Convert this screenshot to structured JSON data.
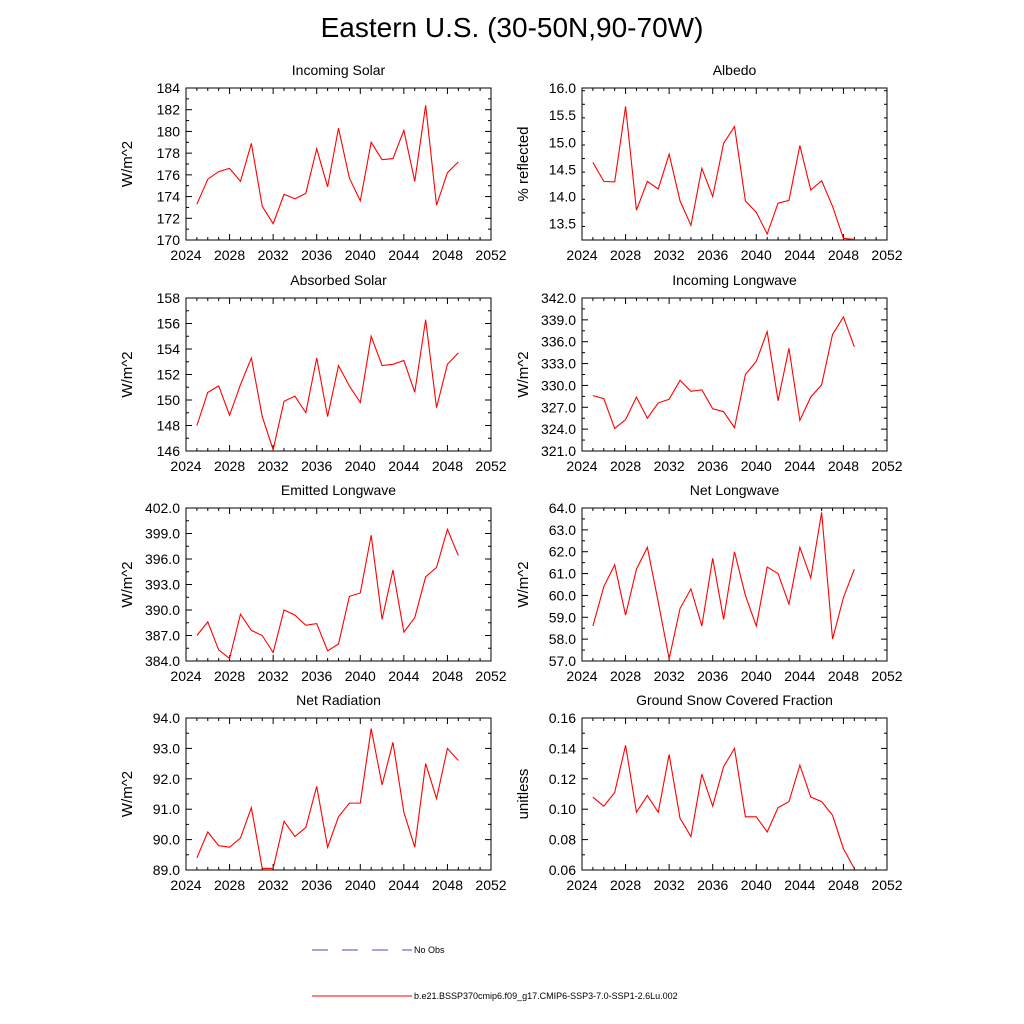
{
  "figure": {
    "title": "Eastern U.S. (30-50N,90-70W)"
  },
  "legend": [
    {
      "label": "No Obs",
      "color": "#4a4ac8",
      "dashed": true
    },
    {
      "label": "b.e21.BSSP370cmip6.f09_g17.CMIP6-SSP3-7.0-SSP1-2.6Lu.002",
      "color": "#ff0000",
      "dashed": false
    }
  ],
  "chart_data": [
    {
      "type": "line",
      "title": "Incoming Solar",
      "xlabel": "",
      "ylabel": "W/m^2",
      "xlim": [
        2024,
        2052
      ],
      "xticks": [
        2024,
        2028,
        2032,
        2036,
        2040,
        2044,
        2048,
        2052
      ],
      "ylim": [
        170,
        184
      ],
      "yticks": [
        170,
        172,
        174,
        176,
        178,
        180,
        182,
        184
      ],
      "ytick_decimals": 0,
      "x": [
        2025,
        2026,
        2027,
        2028,
        2029,
        2030,
        2031,
        2032,
        2033,
        2034,
        2035,
        2036,
        2037,
        2038,
        2039,
        2040,
        2041,
        2042,
        2043,
        2044,
        2045,
        2046,
        2047,
        2048,
        2049
      ],
      "series": [
        {
          "color": "#ff0000",
          "values": [
            173.3,
            175.6,
            176.3,
            176.6,
            175.4,
            178.9,
            173.1,
            171.5,
            174.2,
            173.8,
            174.3,
            178.4,
            174.9,
            180.3,
            175.7,
            173.6,
            179.0,
            177.4,
            177.5,
            180.1,
            175.4,
            182.4,
            173.2,
            176.2,
            177.2
          ]
        }
      ]
    },
    {
      "type": "line",
      "title": "Albedo",
      "xlabel": "",
      "ylabel": "% reflected",
      "xlim": [
        2024,
        2052
      ],
      "xticks": [
        2024,
        2028,
        2032,
        2036,
        2040,
        2044,
        2048,
        2052
      ],
      "ylim": [
        13.2,
        16.0
      ],
      "yticks": [
        13.5,
        14.0,
        14.5,
        15.0,
        15.5,
        16.0
      ],
      "ytick_decimals": 1,
      "x": [
        2025,
        2026,
        2027,
        2028,
        2029,
        2030,
        2031,
        2032,
        2033,
        2034,
        2035,
        2036,
        2037,
        2038,
        2039,
        2040,
        2041,
        2042,
        2043,
        2044,
        2045,
        2046,
        2047,
        2048,
        2049
      ],
      "series": [
        {
          "color": "#ff0000",
          "values": [
            14.63,
            14.28,
            14.27,
            15.66,
            13.75,
            14.28,
            14.14,
            14.78,
            13.92,
            13.47,
            14.52,
            14.0,
            14.98,
            15.29,
            13.92,
            13.71,
            13.31,
            13.88,
            13.93,
            14.94,
            14.12,
            14.29,
            13.82,
            13.23,
            13.21
          ]
        }
      ]
    },
    {
      "type": "line",
      "title": "Absorbed Solar",
      "xlabel": "",
      "ylabel": "W/m^2",
      "xlim": [
        2024,
        2052
      ],
      "xticks": [
        2024,
        2028,
        2032,
        2036,
        2040,
        2044,
        2048,
        2052
      ],
      "ylim": [
        146,
        158
      ],
      "yticks": [
        146,
        148,
        150,
        152,
        154,
        156,
        158
      ],
      "ytick_decimals": 0,
      "x": [
        2025,
        2026,
        2027,
        2028,
        2029,
        2030,
        2031,
        2032,
        2033,
        2034,
        2035,
        2036,
        2037,
        2038,
        2039,
        2040,
        2041,
        2042,
        2043,
        2044,
        2045,
        2046,
        2047,
        2048,
        2049
      ],
      "series": [
        {
          "color": "#ff0000",
          "values": [
            148.0,
            150.6,
            151.1,
            148.8,
            151.2,
            153.3,
            148.7,
            146.1,
            149.9,
            150.3,
            149.0,
            153.3,
            148.7,
            152.7,
            151.1,
            149.8,
            155.0,
            152.7,
            152.8,
            153.1,
            150.6,
            156.3,
            149.4,
            152.8,
            153.7
          ]
        }
      ]
    },
    {
      "type": "line",
      "title": "Incoming Longwave",
      "xlabel": "",
      "ylabel": "W/m^2",
      "xlim": [
        2024,
        2052
      ],
      "xticks": [
        2024,
        2028,
        2032,
        2036,
        2040,
        2044,
        2048,
        2052
      ],
      "ylim": [
        321,
        342
      ],
      "yticks": [
        321,
        324,
        327,
        330,
        333,
        336,
        339,
        342
      ],
      "ytick_decimals": 1,
      "x": [
        2025,
        2026,
        2027,
        2028,
        2029,
        2030,
        2031,
        2032,
        2033,
        2034,
        2035,
        2036,
        2037,
        2038,
        2039,
        2040,
        2041,
        2042,
        2043,
        2044,
        2045,
        2046,
        2047,
        2048,
        2049
      ],
      "series": [
        {
          "color": "#ff0000",
          "values": [
            328.6,
            328.2,
            324.1,
            325.3,
            328.4,
            325.5,
            327.6,
            328.1,
            330.7,
            329.2,
            329.4,
            326.8,
            326.4,
            324.2,
            331.5,
            333.3,
            337.4,
            327.9,
            335.1,
            325.2,
            328.4,
            330.1,
            337.0,
            339.4,
            335.3
          ]
        }
      ]
    },
    {
      "type": "line",
      "title": "Emitted Longwave",
      "xlabel": "",
      "ylabel": "W/m^2",
      "xlim": [
        2024,
        2052
      ],
      "xticks": [
        2024,
        2028,
        2032,
        2036,
        2040,
        2044,
        2048,
        2052
      ],
      "ylim": [
        384,
        402
      ],
      "yticks": [
        384,
        387,
        390,
        393,
        396,
        399,
        402
      ],
      "ytick_decimals": 1,
      "x": [
        2025,
        2026,
        2027,
        2028,
        2029,
        2030,
        2031,
        2032,
        2033,
        2034,
        2035,
        2036,
        2037,
        2038,
        2039,
        2040,
        2041,
        2042,
        2043,
        2044,
        2045,
        2046,
        2047,
        2048,
        2049
      ],
      "series": [
        {
          "color": "#ff0000",
          "values": [
            387.0,
            388.6,
            385.3,
            384.3,
            389.5,
            387.6,
            387.0,
            385.0,
            390.0,
            389.4,
            388.2,
            388.4,
            385.2,
            386.0,
            391.6,
            392.0,
            398.8,
            388.9,
            394.7,
            387.4,
            389.1,
            393.9,
            395.0,
            399.5,
            396.4
          ]
        }
      ]
    },
    {
      "type": "line",
      "title": "Net Longwave",
      "xlabel": "",
      "ylabel": "W/m^2",
      "xlim": [
        2024,
        2052
      ],
      "xticks": [
        2024,
        2028,
        2032,
        2036,
        2040,
        2044,
        2048,
        2052
      ],
      "ylim": [
        57,
        64
      ],
      "yticks": [
        57,
        58,
        59,
        60,
        61,
        62,
        63,
        64
      ],
      "ytick_decimals": 1,
      "x": [
        2025,
        2026,
        2027,
        2028,
        2029,
        2030,
        2031,
        2032,
        2033,
        2034,
        2035,
        2036,
        2037,
        2038,
        2039,
        2040,
        2041,
        2042,
        2043,
        2044,
        2045,
        2046,
        2047,
        2048,
        2049
      ],
      "series": [
        {
          "color": "#ff0000",
          "values": [
            58.6,
            60.4,
            61.4,
            59.1,
            61.2,
            62.2,
            59.7,
            57.1,
            59.4,
            60.3,
            58.6,
            61.7,
            58.9,
            62.0,
            60.0,
            58.6,
            61.3,
            61.0,
            59.6,
            62.2,
            60.8,
            63.8,
            58.0,
            59.9,
            61.2
          ]
        }
      ]
    },
    {
      "type": "line",
      "title": "Net Radiation",
      "xlabel": "",
      "ylabel": "W/m^2",
      "xlim": [
        2024,
        2052
      ],
      "xticks": [
        2024,
        2028,
        2032,
        2036,
        2040,
        2044,
        2048,
        2052
      ],
      "ylim": [
        89,
        94
      ],
      "yticks": [
        89,
        90,
        91,
        92,
        93,
        94
      ],
      "ytick_decimals": 1,
      "x": [
        2025,
        2026,
        2027,
        2028,
        2029,
        2030,
        2031,
        2032,
        2033,
        2034,
        2035,
        2036,
        2037,
        2038,
        2039,
        2040,
        2041,
        2042,
        2043,
        2044,
        2045,
        2046,
        2047,
        2048,
        2049
      ],
      "series": [
        {
          "color": "#ff0000",
          "values": [
            89.4,
            90.25,
            89.8,
            89.75,
            90.05,
            91.05,
            89.05,
            89.05,
            90.6,
            90.1,
            90.4,
            91.75,
            89.75,
            90.75,
            91.2,
            91.2,
            93.65,
            91.8,
            93.2,
            90.9,
            89.75,
            92.5,
            91.35,
            93.0,
            92.6
          ]
        }
      ]
    },
    {
      "type": "line",
      "title": "Ground Snow Covered Fraction",
      "xlabel": "",
      "ylabel": "unitless",
      "xlim": [
        2024,
        2052
      ],
      "xticks": [
        2024,
        2028,
        2032,
        2036,
        2040,
        2044,
        2048,
        2052
      ],
      "ylim": [
        0.06,
        0.16
      ],
      "yticks": [
        0.06,
        0.08,
        0.1,
        0.12,
        0.14,
        0.16
      ],
      "ytick_decimals": 2,
      "x": [
        2025,
        2026,
        2027,
        2028,
        2029,
        2030,
        2031,
        2032,
        2033,
        2034,
        2035,
        2036,
        2037,
        2038,
        2039,
        2040,
        2041,
        2042,
        2043,
        2044,
        2045,
        2046,
        2047,
        2048,
        2049
      ],
      "series": [
        {
          "color": "#ff0000",
          "values": [
            0.108,
            0.102,
            0.111,
            0.142,
            0.098,
            0.109,
            0.098,
            0.136,
            0.094,
            0.082,
            0.123,
            0.102,
            0.128,
            0.14,
            0.095,
            0.095,
            0.085,
            0.101,
            0.105,
            0.129,
            0.108,
            0.105,
            0.096,
            0.074,
            0.061
          ]
        }
      ]
    }
  ]
}
